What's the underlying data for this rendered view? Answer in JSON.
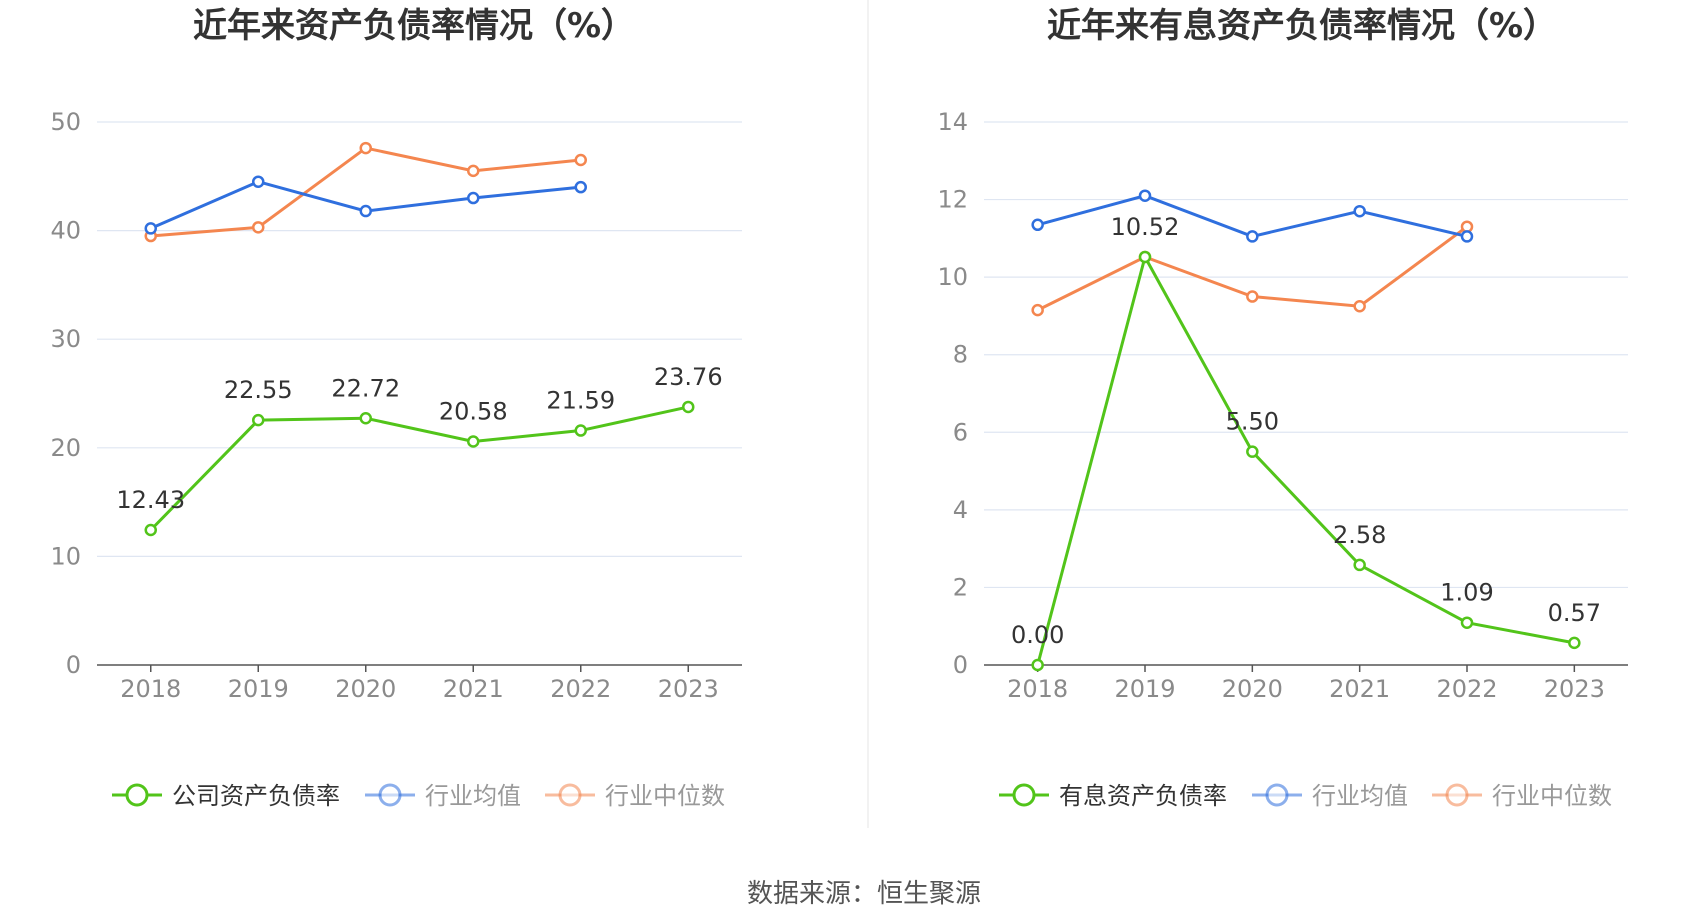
{
  "chart_data": [
    {
      "type": "line",
      "title": "近年来资产负债率情况（%）",
      "categories": [
        "2018",
        "2019",
        "2020",
        "2021",
        "2022",
        "2023"
      ],
      "ylim": [
        0,
        50
      ],
      "yticks": [
        0,
        10,
        20,
        30,
        40,
        50
      ],
      "grid": true,
      "legend_position": "bottom",
      "series": [
        {
          "name": "公司资产负债率",
          "color": "#52c41a",
          "values": [
            12.43,
            22.55,
            22.72,
            20.58,
            21.59,
            23.76
          ],
          "labels": [
            "12.43",
            "22.55",
            "22.72",
            "20.58",
            "21.59",
            "23.76"
          ]
        },
        {
          "name": "行业均值",
          "color": "#2f6fde",
          "values": [
            40.2,
            44.5,
            41.8,
            43.0,
            44.0,
            null
          ]
        },
        {
          "name": "行业中位数",
          "color": "#f4864f",
          "values": [
            39.5,
            40.3,
            47.6,
            45.5,
            46.5,
            null
          ]
        }
      ]
    },
    {
      "type": "line",
      "title": "近年来有息资产负债率情况（%）",
      "categories": [
        "2018",
        "2019",
        "2020",
        "2021",
        "2022",
        "2023"
      ],
      "ylim": [
        0,
        14
      ],
      "yticks": [
        0,
        2,
        4,
        6,
        8,
        10,
        12,
        14
      ],
      "grid": true,
      "legend_position": "bottom",
      "series": [
        {
          "name": "有息资产负债率",
          "color": "#52c41a",
          "values": [
            0.0,
            10.52,
            5.5,
            2.58,
            1.09,
            0.57
          ],
          "labels": [
            "0.00",
            "10.52",
            "5.50",
            "2.58",
            "1.09",
            "0.57"
          ]
        },
        {
          "name": "行业均值",
          "color": "#2f6fde",
          "values": [
            11.35,
            12.1,
            11.05,
            11.7,
            11.05,
            null
          ]
        },
        {
          "name": "行业中位数",
          "color": "#f4864f",
          "values": [
            9.15,
            10.52,
            9.5,
            9.25,
            11.3,
            null
          ]
        }
      ]
    }
  ],
  "source": "数据来源：恒生聚源"
}
